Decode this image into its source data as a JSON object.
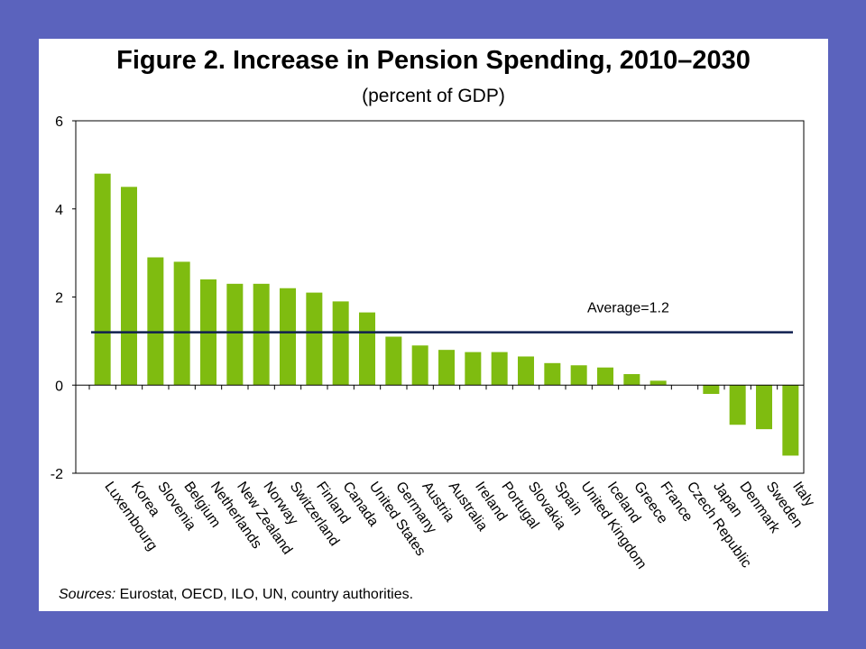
{
  "title": "Figure 2. Increase in Pension Spending, 2010–2030",
  "subtitle": "(percent of GDP)",
  "sources": {
    "label": "Sources:",
    "text": " Eurostat, OECD, ILO, UN, country authorities."
  },
  "colors": {
    "background": "#5b63bd",
    "bar": "#7fbc10",
    "average_line": "#0f1f4f"
  },
  "chart_data": {
    "type": "bar",
    "title": "Figure 2. Increase in Pension Spending, 2010–2030",
    "subtitle": "(percent of GDP)",
    "xlabel": "",
    "ylabel": "",
    "ylim": [
      -2,
      6
    ],
    "yticks": [
      -2,
      0,
      2,
      4,
      6
    ],
    "grid": false,
    "categories": [
      "Luxembourg",
      "Korea",
      "Slovenia",
      "Belgium",
      "Netherlands",
      "New Zealand",
      "Norway",
      "Switzerland",
      "Finland",
      "Canada",
      "United States",
      "Germany",
      "Austria",
      "Australia",
      "Ireland",
      "Portugal",
      "Slovakia",
      "Spain",
      "United Kingdom",
      "Iceland",
      "Greece",
      "France",
      "Czech Republic",
      "Japan",
      "Denmark",
      "Sweden",
      "Italy"
    ],
    "values": [
      4.8,
      4.5,
      2.9,
      2.8,
      2.4,
      2.3,
      2.3,
      2.2,
      2.1,
      1.9,
      1.65,
      1.1,
      0.9,
      0.8,
      0.75,
      0.75,
      0.65,
      0.5,
      0.45,
      0.4,
      0.25,
      0.1,
      0.0,
      -0.2,
      -0.9,
      -1.0,
      -1.6
    ],
    "average": {
      "value": 1.2,
      "label": "Average=1.2"
    }
  }
}
